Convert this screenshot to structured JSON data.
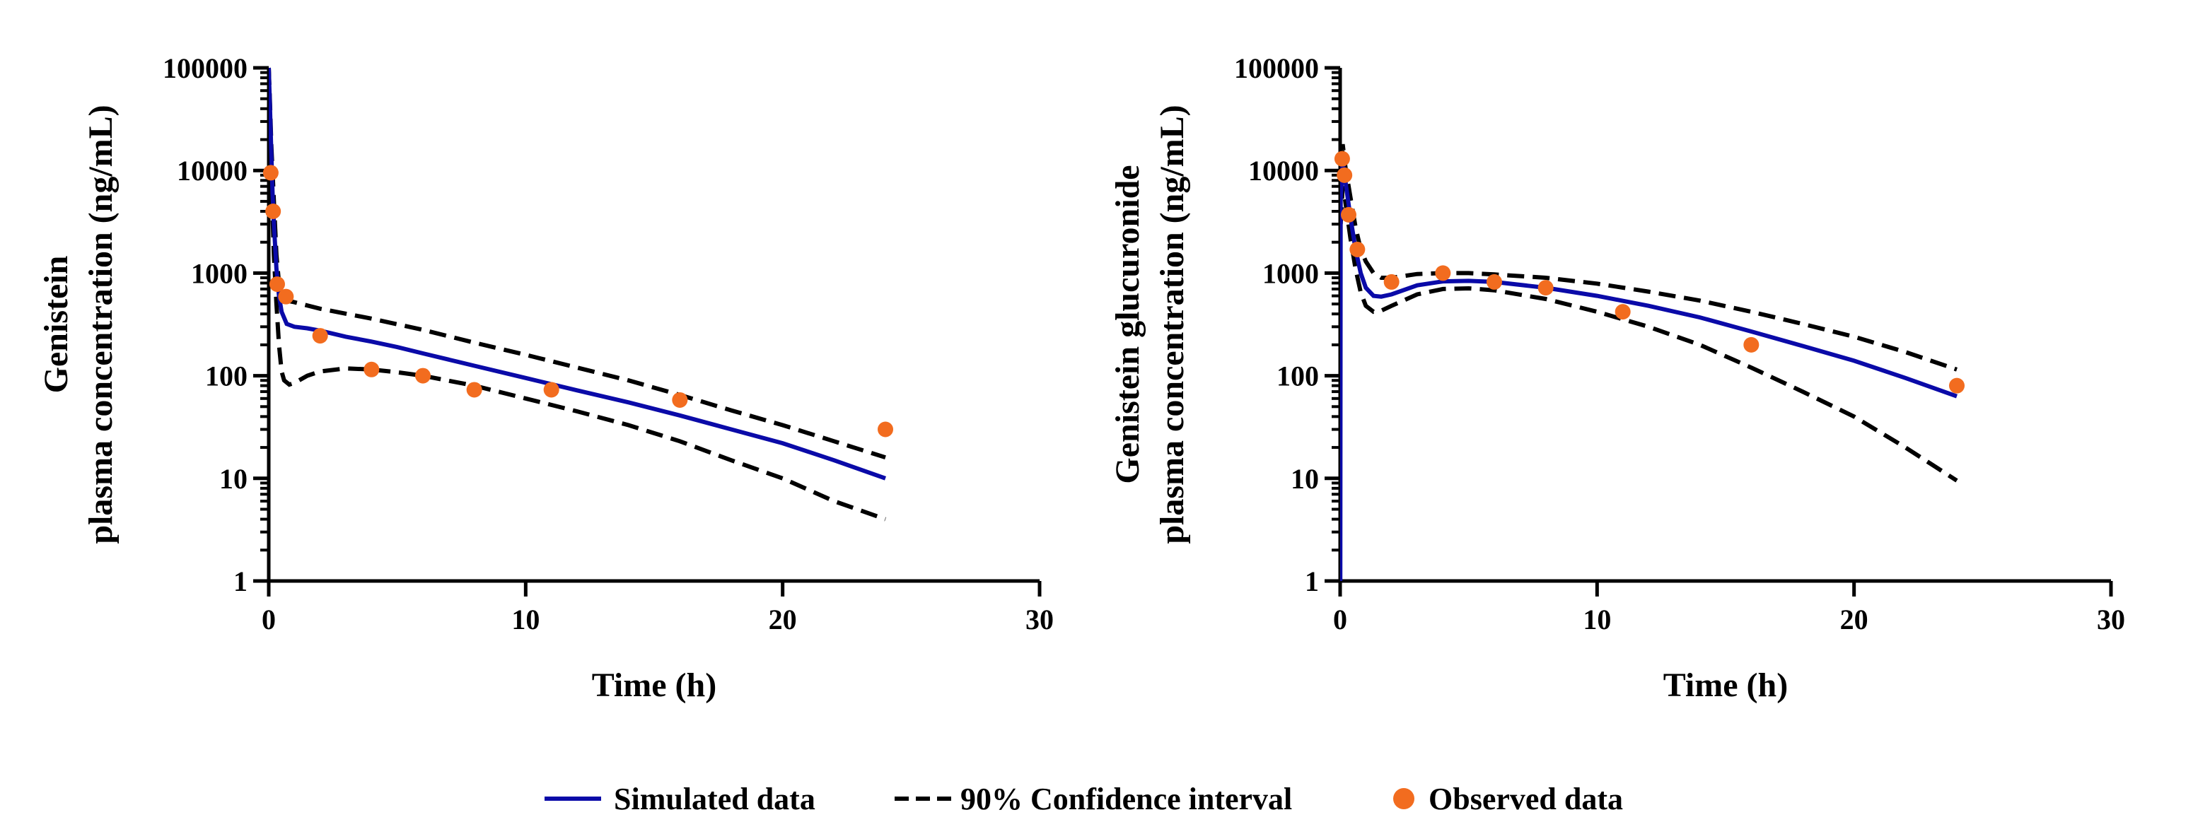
{
  "colors": {
    "simulated": "#0A0AA8",
    "ci": "#000000",
    "observed": "#F26C1F",
    "axis": "#000000"
  },
  "legend": [
    {
      "key": "simulated",
      "label": "Simulated data"
    },
    {
      "key": "ci",
      "label": "90% Confidence interval"
    },
    {
      "key": "observed",
      "label": "Observed data"
    }
  ],
  "chart_data": [
    {
      "type": "line",
      "xlabel": "Time (h)",
      "ylabel_lines": [
        "Genistein",
        "plasma concentration (ng/mL)"
      ],
      "xlim": [
        0,
        30
      ],
      "ylim": [
        1,
        100000
      ],
      "yscale": "log",
      "x_ticks": [
        0,
        10,
        20,
        30
      ],
      "y_ticks": [
        1,
        10,
        100,
        1000,
        10000,
        100000
      ],
      "simulated": [
        [
          0,
          100000
        ],
        [
          0.05,
          40000
        ],
        [
          0.1,
          15000
        ],
        [
          0.15,
          6000
        ],
        [
          0.2,
          3000
        ],
        [
          0.3,
          1100
        ],
        [
          0.4,
          600
        ],
        [
          0.5,
          420
        ],
        [
          0.7,
          320
        ],
        [
          1,
          300
        ],
        [
          1.5,
          290
        ],
        [
          2,
          275
        ],
        [
          3,
          240
        ],
        [
          4,
          215
        ],
        [
          5,
          190
        ],
        [
          6,
          165
        ],
        [
          8,
          125
        ],
        [
          10,
          95
        ],
        [
          12,
          72
        ],
        [
          14,
          55
        ],
        [
          16,
          41
        ],
        [
          18,
          30
        ],
        [
          20,
          22
        ],
        [
          22,
          15
        ],
        [
          24,
          10
        ]
      ],
      "ci_upper": [
        [
          0,
          100000
        ],
        [
          0.05,
          45000
        ],
        [
          0.1,
          18000
        ],
        [
          0.2,
          5000
        ],
        [
          0.3,
          1500
        ],
        [
          0.4,
          800
        ],
        [
          0.5,
          600
        ],
        [
          0.7,
          540
        ],
        [
          1,
          520
        ],
        [
          2,
          450
        ],
        [
          4,
          360
        ],
        [
          6,
          280
        ],
        [
          8,
          210
        ],
        [
          10,
          160
        ],
        [
          12,
          120
        ],
        [
          14,
          90
        ],
        [
          16,
          65
        ],
        [
          18,
          46
        ],
        [
          20,
          33
        ],
        [
          22,
          23
        ],
        [
          24,
          16
        ]
      ],
      "ci_lower": [
        [
          0,
          100000
        ],
        [
          0.05,
          30000
        ],
        [
          0.1,
          9000
        ],
        [
          0.2,
          1500
        ],
        [
          0.3,
          500
        ],
        [
          0.4,
          200
        ],
        [
          0.5,
          110
        ],
        [
          0.6,
          90
        ],
        [
          0.8,
          82
        ],
        [
          1,
          85
        ],
        [
          1.5,
          100
        ],
        [
          2,
          110
        ],
        [
          3,
          118
        ],
        [
          4,
          115
        ],
        [
          5,
          108
        ],
        [
          6,
          100
        ],
        [
          8,
          80
        ],
        [
          10,
          60
        ],
        [
          12,
          45
        ],
        [
          14,
          33
        ],
        [
          16,
          23
        ],
        [
          18,
          15
        ],
        [
          20,
          10
        ],
        [
          22,
          6
        ],
        [
          24,
          4
        ]
      ],
      "observed": [
        [
          0.08,
          9500
        ],
        [
          0.17,
          4000
        ],
        [
          0.33,
          780
        ],
        [
          0.67,
          590
        ],
        [
          2,
          245
        ],
        [
          4,
          115
        ],
        [
          6,
          100
        ],
        [
          8,
          73
        ],
        [
          11,
          73
        ],
        [
          16,
          58
        ],
        [
          24,
          30
        ]
      ]
    },
    {
      "type": "line",
      "xlabel": "Time (h)",
      "ylabel_lines": [
        "Genistein glucuronide",
        "plasma concentration (ng/mL)"
      ],
      "xlim": [
        0,
        30
      ],
      "ylim": [
        1,
        100000
      ],
      "yscale": "log",
      "x_ticks": [
        0,
        10,
        20,
        30
      ],
      "y_ticks": [
        1,
        10,
        100,
        1000,
        10000,
        100000
      ],
      "simulated": [
        [
          0.005,
          1
        ],
        [
          0.02,
          5000
        ],
        [
          0.1,
          12000
        ],
        [
          0.2,
          8000
        ],
        [
          0.4,
          3500
        ],
        [
          0.6,
          1700
        ],
        [
          0.8,
          1000
        ],
        [
          1,
          720
        ],
        [
          1.3,
          600
        ],
        [
          1.6,
          590
        ],
        [
          2,
          620
        ],
        [
          3,
          760
        ],
        [
          4,
          830
        ],
        [
          5,
          840
        ],
        [
          6,
          820
        ],
        [
          8,
          720
        ],
        [
          10,
          600
        ],
        [
          12,
          480
        ],
        [
          14,
          370
        ],
        [
          16,
          270
        ],
        [
          18,
          195
        ],
        [
          20,
          140
        ],
        [
          22,
          95
        ],
        [
          24,
          63
        ]
      ],
      "ci_upper": [
        [
          0.02,
          8000
        ],
        [
          0.1,
          18000
        ],
        [
          0.2,
          11000
        ],
        [
          0.4,
          5500
        ],
        [
          0.6,
          2800
        ],
        [
          0.8,
          1700
        ],
        [
          1,
          1300
        ],
        [
          1.3,
          1000
        ],
        [
          1.6,
          900
        ],
        [
          2,
          900
        ],
        [
          3,
          980
        ],
        [
          4,
          1000
        ],
        [
          5,
          1000
        ],
        [
          6,
          970
        ],
        [
          8,
          900
        ],
        [
          10,
          790
        ],
        [
          12,
          660
        ],
        [
          14,
          540
        ],
        [
          16,
          420
        ],
        [
          18,
          320
        ],
        [
          20,
          240
        ],
        [
          22,
          170
        ],
        [
          24,
          115
        ]
      ],
      "ci_lower": [
        [
          0.02,
          3000
        ],
        [
          0.1,
          7000
        ],
        [
          0.2,
          5000
        ],
        [
          0.4,
          2200
        ],
        [
          0.6,
          1100
        ],
        [
          0.8,
          650
        ],
        [
          1,
          480
        ],
        [
          1.3,
          420
        ],
        [
          1.6,
          430
        ],
        [
          2,
          480
        ],
        [
          3,
          620
        ],
        [
          4,
          700
        ],
        [
          5,
          710
        ],
        [
          6,
          680
        ],
        [
          8,
          560
        ],
        [
          10,
          420
        ],
        [
          12,
          300
        ],
        [
          14,
          200
        ],
        [
          16,
          120
        ],
        [
          18,
          70
        ],
        [
          20,
          40
        ],
        [
          22,
          20
        ],
        [
          24,
          9.5
        ]
      ],
      "observed": [
        [
          0.08,
          13000
        ],
        [
          0.17,
          9000
        ],
        [
          0.33,
          3700
        ],
        [
          0.67,
          1700
        ],
        [
          2,
          820
        ],
        [
          4,
          1000
        ],
        [
          6,
          820
        ],
        [
          8,
          720
        ],
        [
          11,
          420
        ],
        [
          16,
          200
        ],
        [
          24,
          80
        ]
      ]
    }
  ]
}
